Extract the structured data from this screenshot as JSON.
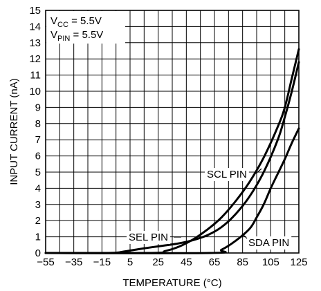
{
  "chart_data": {
    "type": "line",
    "xlabel": "TEMPERATURE (°C)",
    "ylabel": "INPUT CURRENT (nA)",
    "xlim": [
      -55,
      125
    ],
    "ylim": [
      0,
      15
    ],
    "xticks": [
      -55,
      -35,
      -15,
      5,
      25,
      45,
      65,
      85,
      105,
      125
    ],
    "xtick_labels": [
      "−55",
      "−35",
      "−15",
      "5",
      "25",
      "45",
      "65",
      "85",
      "105",
      "125"
    ],
    "yticks": [
      0,
      1,
      2,
      3,
      4,
      5,
      6,
      7,
      8,
      9,
      10,
      11,
      12,
      13,
      14,
      15
    ],
    "grid": true,
    "conditions": {
      "vcc_main": "V",
      "vcc_sub": "CC",
      "vcc_value": " = 5.5V",
      "vpin_main": "V",
      "vpin_sub": "PIN",
      "vpin_value": " = 5.5V"
    },
    "series": [
      {
        "name": "SEL PIN",
        "x": [
          -55,
          -10,
          0,
          10,
          20,
          30,
          40,
          50,
          60,
          70,
          80,
          90,
          100,
          110,
          115,
          120,
          125
        ],
        "y": [
          0,
          0,
          0.08,
          0.22,
          0.35,
          0.47,
          0.6,
          0.8,
          1.1,
          1.6,
          2.4,
          3.5,
          5.0,
          7.0,
          8.4,
          10.0,
          11.8
        ]
      },
      {
        "name": "SCL PIN",
        "x": [
          -55,
          20,
          30,
          40,
          50,
          60,
          70,
          80,
          90,
          100,
          110,
          115,
          120,
          125
        ],
        "y": [
          0,
          0,
          0.12,
          0.4,
          0.85,
          1.45,
          2.2,
          3.2,
          4.4,
          5.9,
          7.8,
          9.0,
          10.8,
          12.6
        ]
      },
      {
        "name": "SDA PIN",
        "x": [
          -55,
          62,
          70,
          80,
          90,
          95,
          100,
          105,
          110,
          115,
          120,
          125
        ],
        "y": [
          0,
          0,
          0.2,
          0.75,
          1.5,
          2.2,
          3.0,
          4.0,
          4.9,
          5.8,
          6.8,
          7.7
        ]
      }
    ]
  }
}
